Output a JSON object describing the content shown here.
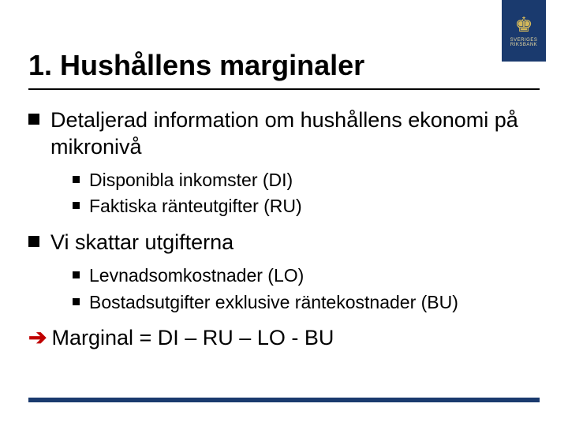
{
  "logo": {
    "crown_glyph": "♚",
    "text_line1": "SVERIGES",
    "text_line2": "RIKSBANK",
    "bg_color": "#1a3a6e",
    "fg_color": "#d4b85a"
  },
  "title": "1. Hushållens marginaler",
  "bullets": [
    {
      "text": "Detaljerad information om hushållens ekonomi på mikronivå",
      "sub": [
        "Disponibla inkomster (DI)",
        "Faktiska ränteutgifter (RU)"
      ]
    },
    {
      "text": "Vi skattar utgifterna",
      "sub": [
        "Levnadsomkostnader (LO)",
        "Bostadsutgifter exklusive räntekostnader (BU)"
      ]
    }
  ],
  "conclusion": {
    "arrow_color": "#c00000",
    "text": "Marginal = DI – RU – LO - BU"
  },
  "styling": {
    "title_fontsize": 36,
    "l1_fontsize": 27,
    "l2_fontsize": 23,
    "l1_bullet_size": 14,
    "l2_bullet_size": 9,
    "underline_color": "#000000",
    "bottom_bar_color": "#1a3a6e",
    "background": "#ffffff"
  }
}
